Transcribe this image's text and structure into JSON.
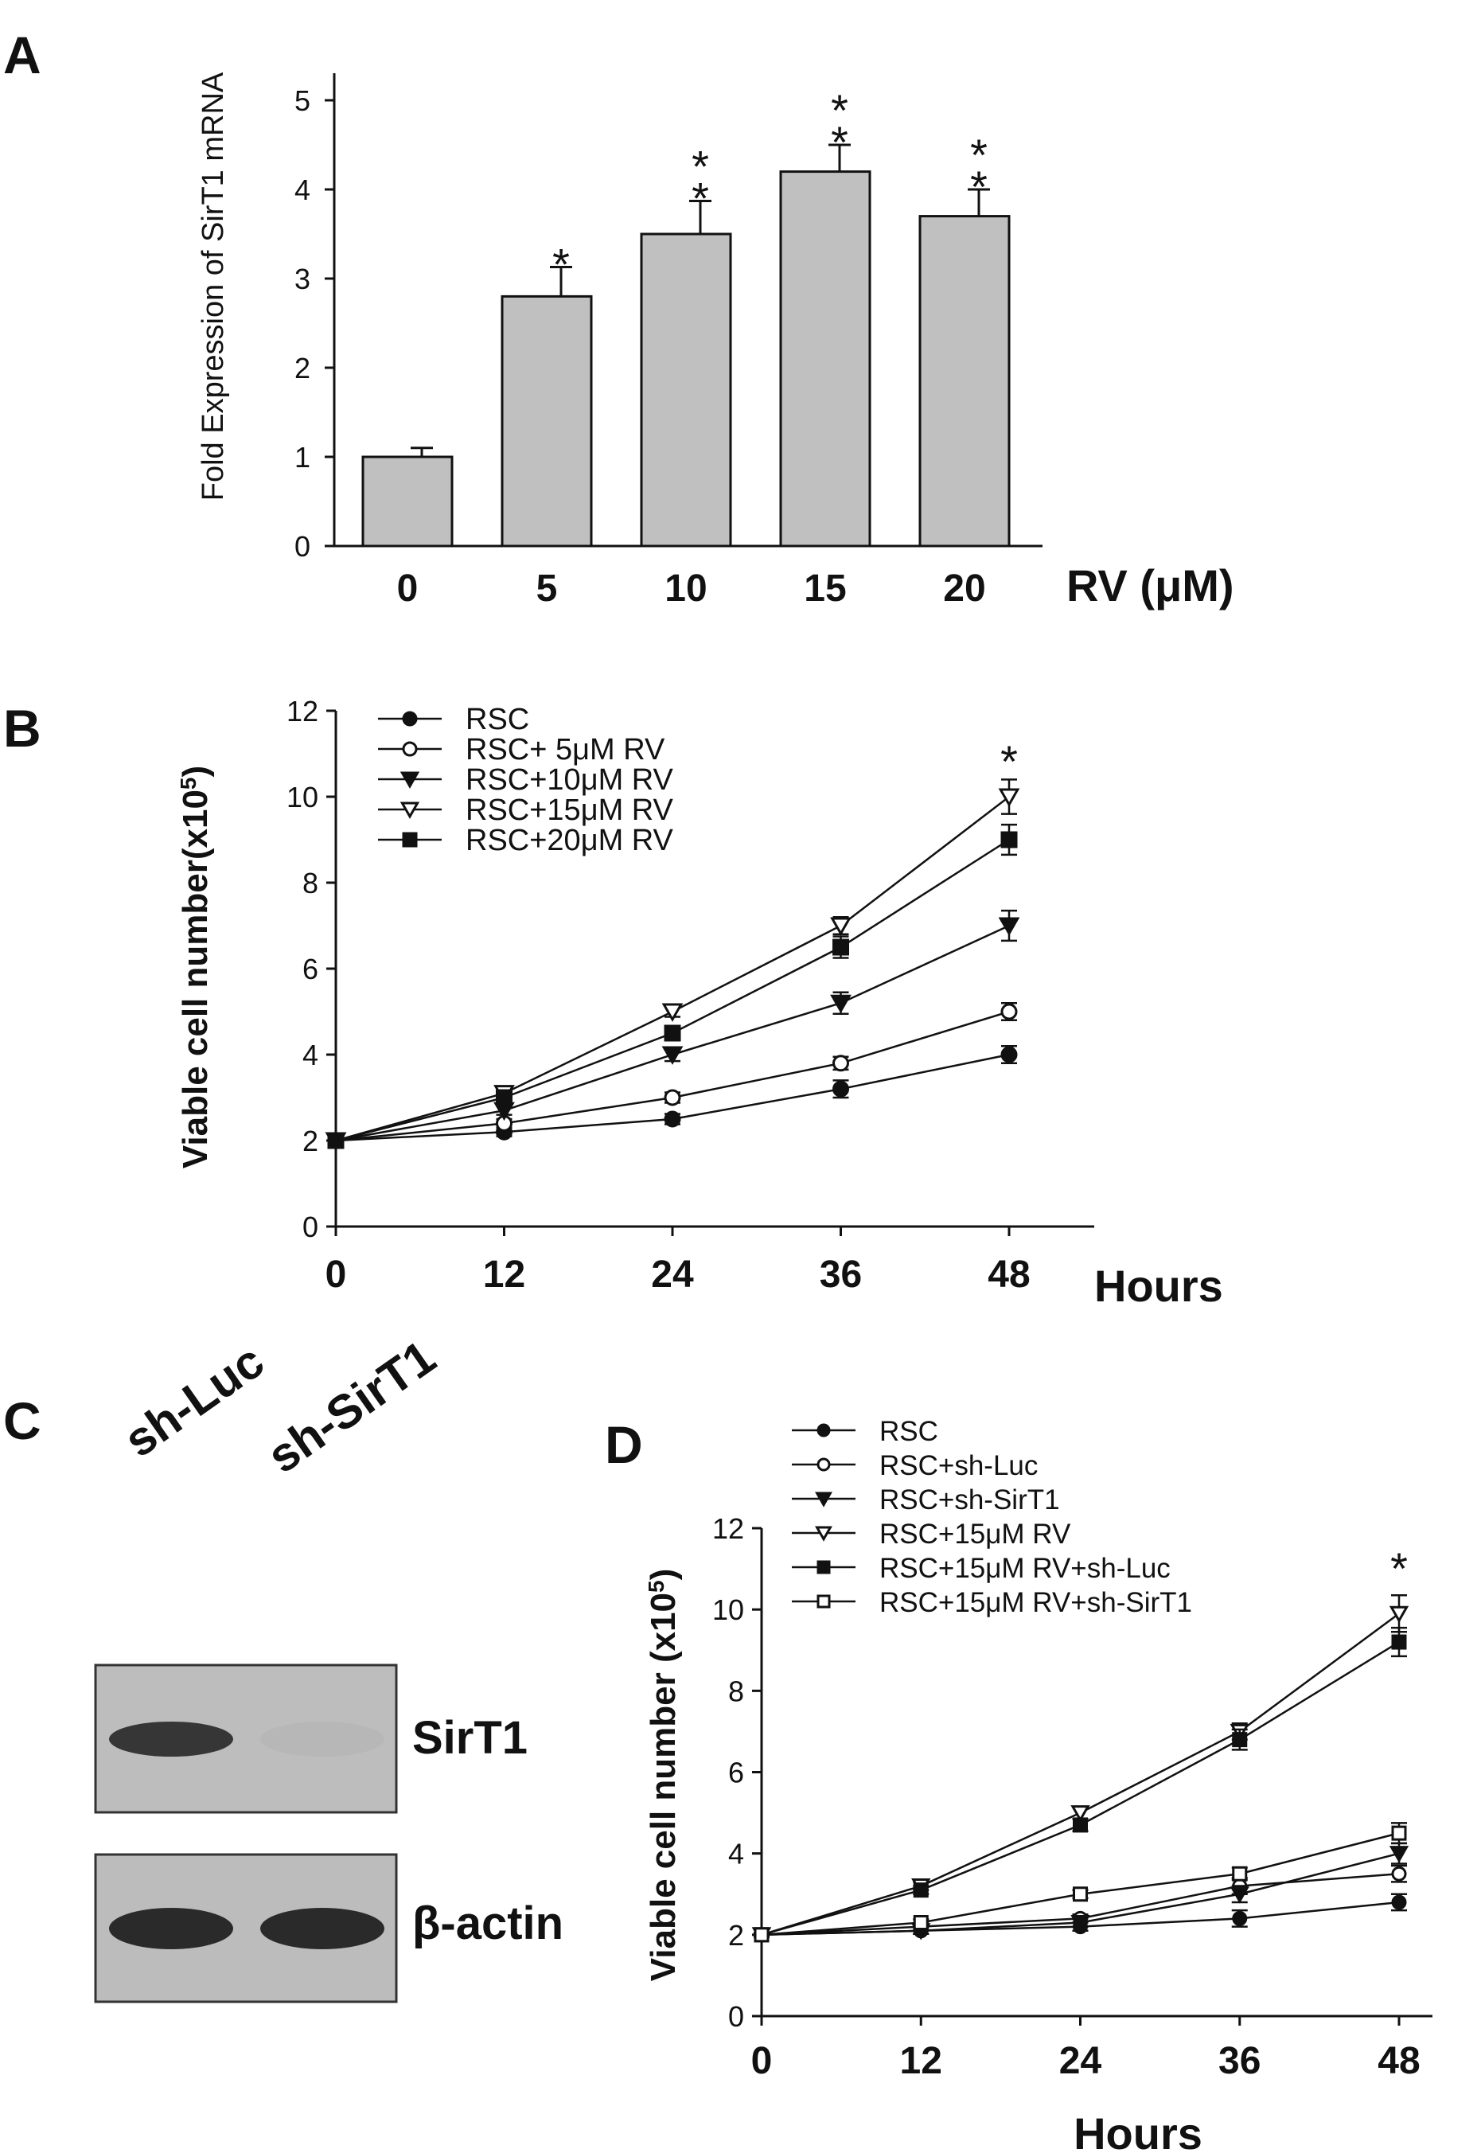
{
  "panels": {
    "A": {
      "label": "A"
    },
    "B": {
      "label": "B"
    },
    "C": {
      "label": "C"
    },
    "D": {
      "label": "D"
    }
  },
  "blot": {
    "lanes": [
      "sh-Luc",
      "sh-SirT1"
    ],
    "bands": [
      "SirT1",
      "β-actin"
    ],
    "intensity": [
      [
        0.85,
        0.12
      ],
      [
        0.9,
        0.9
      ]
    ]
  },
  "chart_data": [
    {
      "id": "A",
      "type": "bar",
      "categories": [
        "0",
        "5",
        "10",
        "15",
        "20"
      ],
      "values": [
        1.0,
        2.8,
        3.5,
        4.2,
        3.7
      ],
      "errors": [
        0.1,
        0.33,
        0.37,
        0.3,
        0.3
      ],
      "significance": [
        "",
        "*",
        "**",
        "**",
        "**"
      ],
      "xlabel": "RV (μM)",
      "ylabel": "Fold Expression of SirT1 mRNA",
      "ylim": [
        0,
        5
      ],
      "yticks": [
        0,
        1,
        2,
        3,
        4,
        5
      ],
      "bar_color": "#c0c0c0"
    },
    {
      "id": "B",
      "type": "line",
      "x": [
        0,
        12,
        24,
        36,
        48
      ],
      "xticks": [
        "0",
        "12",
        "24",
        "36",
        "48"
      ],
      "xlabel": "Hours",
      "ylabel": "Viable cell number(x10",
      "ylabel_sup": "5",
      "ylabel_end": ")",
      "ylim": [
        0,
        12
      ],
      "yticks": [
        0,
        2,
        4,
        6,
        8,
        10,
        12
      ],
      "legend_position": "top-left",
      "annotation": "*",
      "series": [
        {
          "name": "RSC",
          "marker": "filled-circle",
          "values": [
            2.0,
            2.2,
            2.5,
            3.2,
            4.0
          ],
          "errors": [
            0.05,
            0.1,
            0.12,
            0.2,
            0.2
          ]
        },
        {
          "name": "RSC+ 5μM RV",
          "marker": "open-circle",
          "values": [
            2.0,
            2.4,
            3.0,
            3.8,
            5.0
          ],
          "errors": [
            0.05,
            0.1,
            0.12,
            0.15,
            0.2
          ]
        },
        {
          "name": "RSC+10μM RV",
          "marker": "filled-triangle",
          "values": [
            2.0,
            2.7,
            4.0,
            5.2,
            7.0
          ],
          "errors": [
            0.05,
            0.1,
            0.15,
            0.25,
            0.35
          ]
        },
        {
          "name": "RSC+15μM RV",
          "marker": "open-triangle",
          "values": [
            2.0,
            3.1,
            5.0,
            7.0,
            10.0
          ],
          "errors": [
            0.05,
            0.1,
            0.12,
            0.2,
            0.4
          ]
        },
        {
          "name": "RSC+20μM RV",
          "marker": "filled-square",
          "values": [
            2.0,
            3.0,
            4.5,
            6.5,
            9.0
          ],
          "errors": [
            0.05,
            0.1,
            0.15,
            0.25,
            0.35
          ]
        }
      ]
    },
    {
      "id": "D",
      "type": "line",
      "x": [
        0,
        12,
        24,
        36,
        48
      ],
      "xticks": [
        "0",
        "12",
        "24",
        "36",
        "48"
      ],
      "xlabel": "Hours",
      "ylabel": "Viable cell number (x10",
      "ylabel_sup": "5",
      "ylabel_end": ")",
      "ylim": [
        0,
        12
      ],
      "yticks": [
        0,
        2,
        4,
        6,
        8,
        10,
        12
      ],
      "legend_position": "top",
      "annotation": "*",
      "series": [
        {
          "name": "RSC",
          "marker": "filled-circle",
          "values": [
            2.0,
            2.1,
            2.2,
            2.4,
            2.8
          ],
          "errors": [
            0.05,
            0.08,
            0.1,
            0.2,
            0.2
          ]
        },
        {
          "name": "RSC+sh-Luc",
          "marker": "open-circle",
          "values": [
            2.0,
            2.2,
            2.4,
            3.2,
            3.5
          ],
          "errors": [
            0.05,
            0.08,
            0.1,
            0.2,
            0.2
          ]
        },
        {
          "name": "RSC+sh-SirT1",
          "marker": "filled-triangle",
          "values": [
            2.0,
            2.1,
            2.3,
            3.0,
            4.0
          ],
          "errors": [
            0.05,
            0.08,
            0.1,
            0.2,
            0.25
          ]
        },
        {
          "name": "RSC+15μM RV",
          "marker": "open-triangle",
          "values": [
            2.0,
            3.2,
            5.0,
            7.0,
            9.9
          ],
          "errors": [
            0.05,
            0.1,
            0.15,
            0.2,
            0.45
          ]
        },
        {
          "name": "RSC+15μM RV+sh-Luc",
          "marker": "filled-square",
          "values": [
            2.0,
            3.1,
            4.7,
            6.8,
            9.2
          ],
          "errors": [
            0.05,
            0.1,
            0.15,
            0.25,
            0.35
          ]
        },
        {
          "name": "RSC+15μM RV+sh-SirT1",
          "marker": "open-square",
          "values": [
            2.0,
            2.3,
            3.0,
            3.5,
            4.5
          ],
          "errors": [
            0.05,
            0.08,
            0.1,
            0.15,
            0.25
          ]
        }
      ]
    }
  ]
}
